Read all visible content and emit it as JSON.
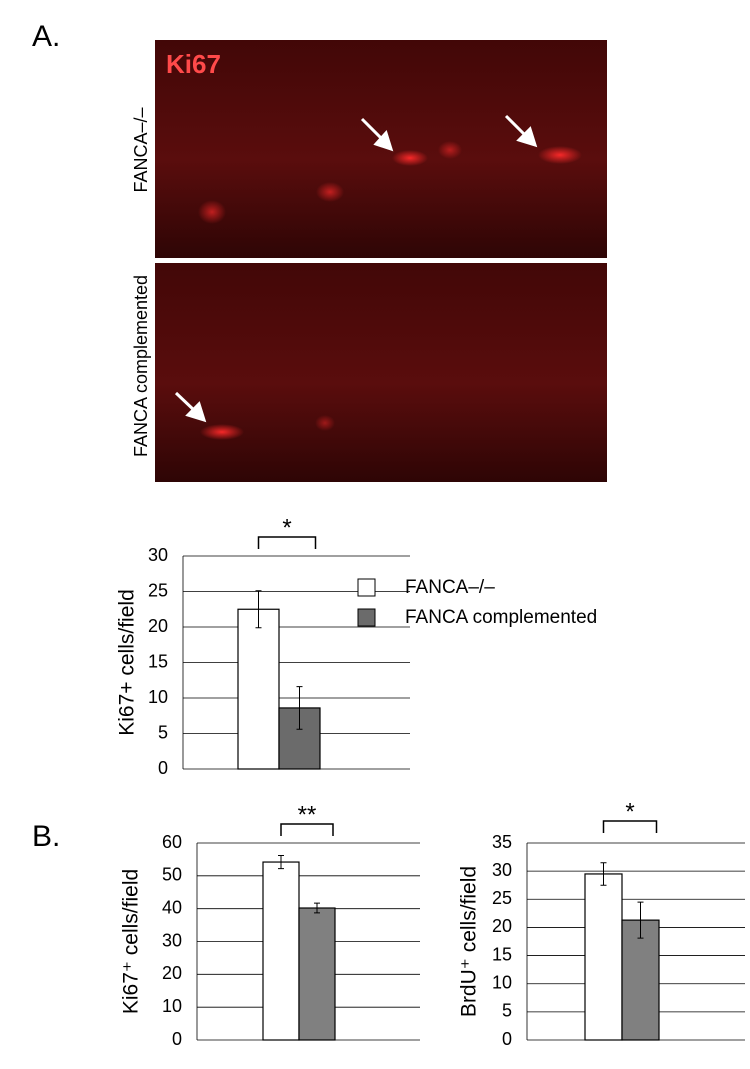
{
  "figure": {
    "panel_a_label": "A.",
    "panel_b_label": "B.",
    "image_stain": "Ki67",
    "image_top_label": "FANCA–/–",
    "image_bottom_label": "FANCA complemented"
  },
  "chart_data": [
    {
      "type": "bar",
      "ylabel": "Ki67+ cells/field",
      "annotation": "*",
      "ylim": [
        0,
        30
      ],
      "yticks": [
        0,
        5,
        10,
        15,
        20,
        25,
        30
      ],
      "grid": true,
      "legend": "upper right",
      "series": [
        {
          "name": "FANCA–/–",
          "color": "#ffffff",
          "values": [
            22.5
          ],
          "errors": [
            2.6
          ]
        },
        {
          "name": "FANCA complemented",
          "color": "#6b6b6b",
          "values": [
            8.6
          ],
          "errors": [
            3
          ]
        }
      ]
    },
    {
      "type": "bar",
      "ylabel": "Ki67⁺ cells/field",
      "annotation": "**",
      "ylim": [
        0,
        60
      ],
      "yticks": [
        0,
        10,
        20,
        30,
        40,
        50,
        60
      ],
      "grid": true,
      "series": [
        {
          "color": "#ffffff",
          "values": [
            54.2
          ],
          "errors": [
            2
          ]
        },
        {
          "color": "#808080",
          "values": [
            40.2
          ],
          "errors": [
            1.5
          ]
        }
      ]
    },
    {
      "type": "bar",
      "ylabel": "BrdU⁺ cells/field",
      "annotation": "*",
      "ylim": [
        0,
        35
      ],
      "yticks": [
        0,
        5,
        10,
        15,
        20,
        25,
        30,
        35
      ],
      "grid": true,
      "series": [
        {
          "color": "#ffffff",
          "values": [
            29.5
          ],
          "errors": [
            2
          ]
        },
        {
          "color": "#808080",
          "values": [
            21.3
          ],
          "errors": [
            3.2
          ]
        }
      ]
    }
  ]
}
